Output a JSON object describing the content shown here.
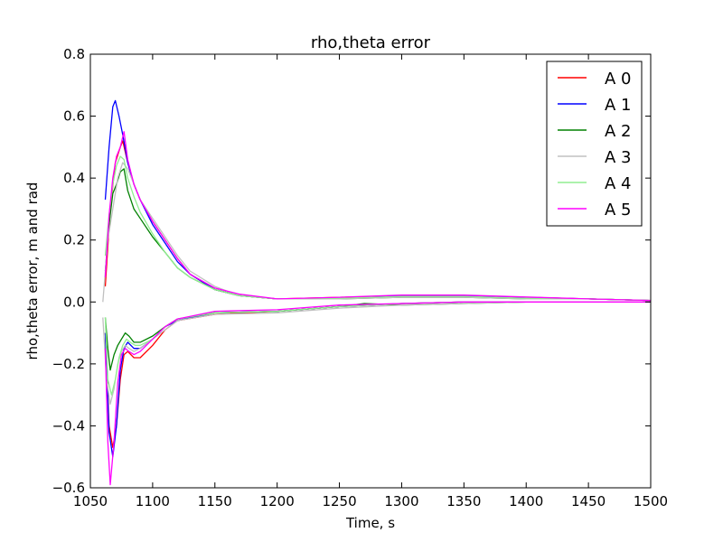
{
  "chart_data": {
    "type": "line",
    "title": "rho,theta error",
    "xlabel": "Time, s",
    "ylabel": "rho,theta error, m and rad",
    "xlim": [
      1050,
      1500
    ],
    "ylim": [
      -0.6,
      0.8
    ],
    "xticks": [
      "1050",
      "1100",
      "1150",
      "1200",
      "1250",
      "1300",
      "1350",
      "1400",
      "1450",
      "1500"
    ],
    "yticks": [
      "0.8",
      "0.6",
      "0.4",
      "0.2",
      "0.0",
      "−0.2",
      "−0.4",
      "−0.6"
    ],
    "xtick_values": [
      1050,
      1100,
      1150,
      1200,
      1250,
      1300,
      1350,
      1400,
      1450,
      1500
    ],
    "ytick_values": [
      0.8,
      0.6,
      0.4,
      0.2,
      0.0,
      -0.2,
      -0.4,
      -0.6
    ],
    "grid": false,
    "legend_position": "top-right",
    "series": [
      {
        "name": "A 0",
        "color": "#ff0000",
        "upper": {
          "x": [
            1062,
            1066,
            1070,
            1074,
            1076,
            1080,
            1085,
            1090,
            1100,
            1110,
            1120,
            1130,
            1150,
            1170,
            1200,
            1250,
            1300,
            1350,
            1400,
            1450,
            1500
          ],
          "y": [
            0.05,
            0.3,
            0.45,
            0.5,
            0.52,
            0.45,
            0.38,
            0.33,
            0.26,
            0.2,
            0.14,
            0.09,
            0.04,
            0.02,
            0.01,
            0.015,
            0.02,
            0.02,
            0.015,
            0.01,
            0.005
          ]
        },
        "lower": {
          "x": [
            1062,
            1065,
            1068,
            1071,
            1074,
            1077,
            1080,
            1085,
            1090,
            1100,
            1110,
            1120,
            1150,
            1200,
            1250,
            1300,
            1350,
            1400,
            1450,
            1500
          ],
          "y": [
            -0.1,
            -0.4,
            -0.47,
            -0.4,
            -0.25,
            -0.17,
            -0.16,
            -0.18,
            -0.18,
            -0.14,
            -0.09,
            -0.06,
            -0.04,
            -0.03,
            -0.015,
            -0.005,
            0.0,
            0.0,
            0.0,
            0.0
          ]
        }
      },
      {
        "name": "A 1",
        "color": "#0000ff",
        "upper": {
          "x": [
            1062,
            1065,
            1068,
            1070,
            1073,
            1076,
            1080,
            1085,
            1090,
            1100,
            1110,
            1120,
            1130,
            1150,
            1170,
            1200,
            1250,
            1300,
            1350,
            1400,
            1450,
            1500
          ],
          "y": [
            0.33,
            0.5,
            0.63,
            0.65,
            0.6,
            0.54,
            0.45,
            0.38,
            0.33,
            0.25,
            0.19,
            0.13,
            0.09,
            0.04,
            0.02,
            0.01,
            0.01,
            0.02,
            0.02,
            0.015,
            0.01,
            0.005
          ]
        },
        "lower": {
          "x": [
            1062,
            1065,
            1068,
            1071,
            1074,
            1077,
            1080,
            1085,
            1090,
            1100,
            1110,
            1120,
            1150,
            1200,
            1250,
            1300,
            1350,
            1400,
            1450,
            1500
          ],
          "y": [
            -0.1,
            -0.42,
            -0.5,
            -0.4,
            -0.22,
            -0.15,
            -0.13,
            -0.15,
            -0.15,
            -0.12,
            -0.08,
            -0.06,
            -0.035,
            -0.03,
            -0.015,
            -0.005,
            0.0,
            0.0,
            0.0,
            0.0
          ]
        }
      },
      {
        "name": "A 2",
        "color": "#008000",
        "upper": {
          "x": [
            1062,
            1065,
            1068,
            1071,
            1074,
            1077,
            1080,
            1085,
            1090,
            1100,
            1110,
            1120,
            1130,
            1150,
            1170,
            1200,
            1250,
            1300,
            1350,
            1400,
            1450,
            1500
          ],
          "y": [
            0.1,
            0.25,
            0.35,
            0.38,
            0.42,
            0.43,
            0.36,
            0.3,
            0.27,
            0.21,
            0.16,
            0.11,
            0.08,
            0.04,
            0.02,
            0.01,
            0.01,
            0.015,
            0.015,
            0.01,
            0.01,
            0.005
          ]
        },
        "lower": {
          "x": [
            1062,
            1064,
            1066,
            1069,
            1072,
            1075,
            1078,
            1081,
            1085,
            1090,
            1100,
            1110,
            1120,
            1150,
            1200,
            1250,
            1270,
            1300,
            1350,
            1400,
            1450,
            1500
          ],
          "y": [
            -0.05,
            -0.15,
            -0.22,
            -0.17,
            -0.14,
            -0.12,
            -0.1,
            -0.11,
            -0.13,
            -0.13,
            -0.11,
            -0.08,
            -0.055,
            -0.035,
            -0.03,
            -0.015,
            -0.005,
            -0.01,
            -0.005,
            0.0,
            0.0,
            0.0
          ]
        }
      },
      {
        "name": "A 3",
        "color": "#c0c0c0",
        "upper": {
          "x": [
            1060,
            1064,
            1068,
            1072,
            1076,
            1080,
            1085,
            1090,
            1100,
            1110,
            1120,
            1130,
            1150,
            1170,
            1200,
            1250,
            1300,
            1350,
            1400,
            1450,
            1500
          ],
          "y": [
            0.0,
            0.2,
            0.3,
            0.4,
            0.45,
            0.43,
            0.38,
            0.33,
            0.27,
            0.21,
            0.15,
            0.1,
            0.05,
            0.02,
            0.01,
            0.01,
            0.015,
            0.015,
            0.01,
            0.01,
            0.005
          ]
        },
        "lower": {
          "x": [
            1060,
            1063,
            1066,
            1069,
            1072,
            1075,
            1078,
            1081,
            1085,
            1090,
            1100,
            1110,
            1120,
            1150,
            1200,
            1250,
            1300,
            1350,
            1400,
            1450,
            1500
          ],
          "y": [
            -0.05,
            -0.25,
            -0.33,
            -0.28,
            -0.2,
            -0.16,
            -0.14,
            -0.15,
            -0.16,
            -0.15,
            -0.12,
            -0.09,
            -0.06,
            -0.04,
            -0.035,
            -0.02,
            -0.01,
            -0.005,
            0.0,
            0.0,
            0.0
          ]
        }
      },
      {
        "name": "A 4",
        "color": "#90ee90",
        "upper": {
          "x": [
            1062,
            1065,
            1068,
            1071,
            1074,
            1077,
            1080,
            1085,
            1090,
            1100,
            1110,
            1120,
            1130,
            1150,
            1170,
            1200,
            1250,
            1300,
            1350,
            1400,
            1450,
            1500
          ],
          "y": [
            0.15,
            0.28,
            0.38,
            0.44,
            0.47,
            0.46,
            0.4,
            0.34,
            0.29,
            0.22,
            0.16,
            0.11,
            0.08,
            0.04,
            0.02,
            0.01,
            0.012,
            0.018,
            0.018,
            0.012,
            0.01,
            0.005
          ]
        },
        "lower": {
          "x": [
            1062,
            1064,
            1067,
            1070,
            1073,
            1076,
            1079,
            1082,
            1086,
            1090,
            1100,
            1110,
            1120,
            1150,
            1200,
            1250,
            1300,
            1350,
            1400,
            1450,
            1500
          ],
          "y": [
            -0.05,
            -0.25,
            -0.3,
            -0.25,
            -0.18,
            -0.14,
            -0.12,
            -0.13,
            -0.14,
            -0.14,
            -0.12,
            -0.08,
            -0.055,
            -0.035,
            -0.03,
            -0.015,
            -0.005,
            0.0,
            0.0,
            0.0,
            0.0
          ]
        }
      },
      {
        "name": "A 5",
        "color": "#ff00ff",
        "upper": {
          "x": [
            1062,
            1065,
            1068,
            1071,
            1074,
            1077,
            1080,
            1085,
            1090,
            1100,
            1110,
            1120,
            1130,
            1150,
            1170,
            1200,
            1250,
            1300,
            1350,
            1400,
            1450,
            1500
          ],
          "y": [
            0.08,
            0.28,
            0.4,
            0.47,
            0.5,
            0.55,
            0.46,
            0.38,
            0.33,
            0.26,
            0.2,
            0.14,
            0.09,
            0.045,
            0.025,
            0.01,
            0.015,
            0.022,
            0.022,
            0.016,
            0.01,
            0.005
          ]
        },
        "lower": {
          "x": [
            1062,
            1064,
            1066,
            1069,
            1072,
            1075,
            1078,
            1081,
            1085,
            1090,
            1100,
            1110,
            1120,
            1150,
            1200,
            1250,
            1300,
            1350,
            1400,
            1450,
            1500
          ],
          "y": [
            -0.15,
            -0.45,
            -0.59,
            -0.45,
            -0.26,
            -0.17,
            -0.15,
            -0.16,
            -0.17,
            -0.16,
            -0.12,
            -0.08,
            -0.055,
            -0.03,
            -0.025,
            -0.01,
            -0.005,
            0.0,
            0.0,
            0.0,
            0.0
          ]
        }
      }
    ]
  }
}
